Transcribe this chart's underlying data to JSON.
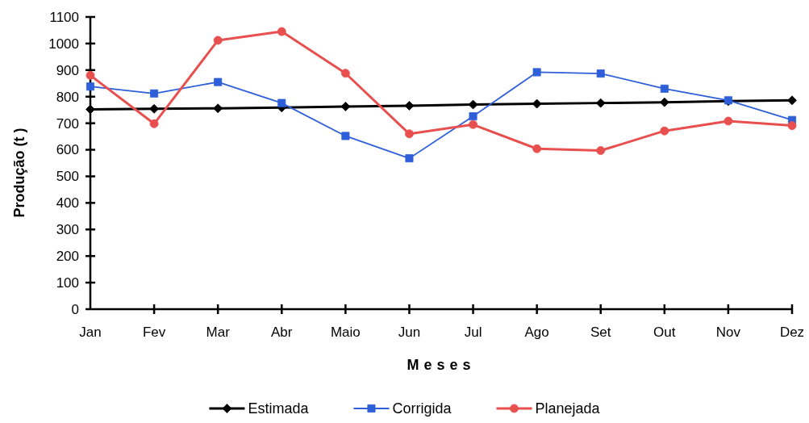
{
  "chart_data": {
    "type": "line",
    "xlabel": "Meses",
    "ylabel": "Produção (t )",
    "categories": [
      "Jan",
      "Fev",
      "Mar",
      "Abr",
      "Maio",
      "Jun",
      "Jul",
      "Ago",
      "Set",
      "Out",
      "Nov",
      "Dez"
    ],
    "ylim": [
      0,
      1100
    ],
    "yticks": [
      0,
      100,
      200,
      300,
      400,
      500,
      600,
      700,
      800,
      900,
      1000,
      1100
    ],
    "legend": "bottom",
    "series": [
      {
        "name": "Estimada",
        "color": "#000000",
        "marker": "diamond",
        "values": [
          752,
          754,
          756,
          759,
          763,
          766,
          770,
          773,
          776,
          779,
          783,
          786
        ]
      },
      {
        "name": "Corrigida",
        "color": "#2f5fd8",
        "marker": "square",
        "values": [
          838,
          812,
          855,
          776,
          652,
          568,
          726,
          892,
          887,
          830,
          786,
          712
        ]
      },
      {
        "name": "Planejada",
        "color": "#e8504f",
        "marker": "circle",
        "values": [
          880,
          698,
          1012,
          1045,
          888,
          660,
          695,
          604,
          597,
          671,
          708,
          691
        ]
      }
    ]
  }
}
